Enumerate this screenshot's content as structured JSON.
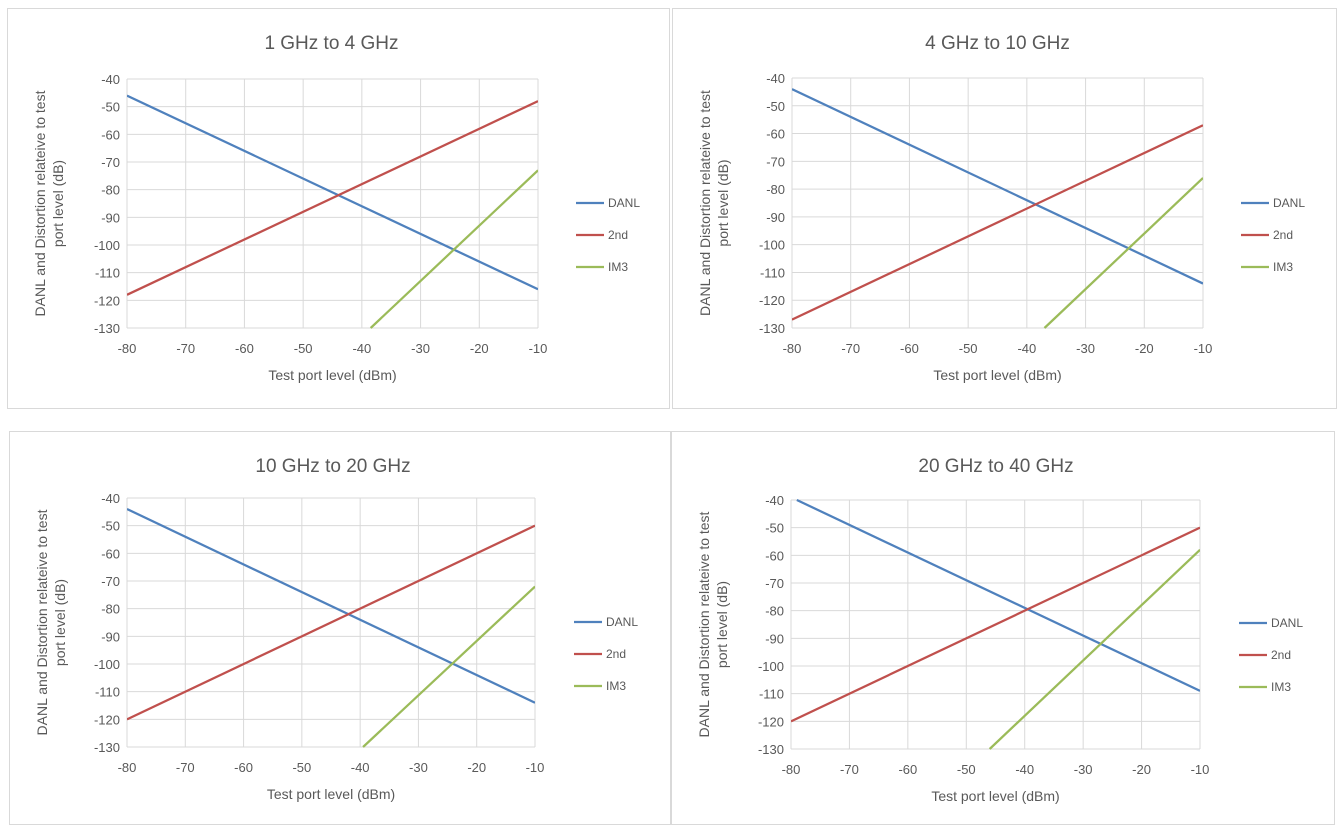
{
  "chart_data": [
    {
      "type": "line",
      "title": "1 GHz to 4 GHz",
      "xlabel": "Test port level (dBm)",
      "ylabel": "DANL and Distortion relateive to test port level (dB)",
      "ylabel_lines": [
        "DANL and Distortion relateive to test",
        "port level (dB)"
      ],
      "xlim": [
        -80,
        -10
      ],
      "ylim": [
        -130,
        -40
      ],
      "xticks": [
        "-80",
        "-70",
        "-60",
        "-50",
        "-40",
        "-30",
        "-20",
        "-10"
      ],
      "yticks": [
        "-40",
        "-50",
        "-60",
        "-70",
        "-80",
        "-90",
        "-100",
        "-110",
        "-120",
        "-130"
      ],
      "grid": true,
      "legend": "right",
      "series": [
        {
          "name": "DANL",
          "color": "#4f81bd",
          "x": [
            -80,
            -10
          ],
          "y": [
            -46,
            -116
          ]
        },
        {
          "name": "2nd",
          "color": "#c0504d",
          "x": [
            -80,
            -10
          ],
          "y": [
            -118,
            -48
          ]
        },
        {
          "name": "IM3",
          "color": "#9bbb59",
          "x": [
            -38.5,
            -10
          ],
          "y": [
            -130,
            -73
          ]
        }
      ]
    },
    {
      "type": "line",
      "title": "4 GHz to 10 GHz",
      "xlabel": "Test port level (dBm)",
      "ylabel": "DANL and Distortion relateive to test port level (dB)",
      "ylabel_lines": [
        "DANL and Distortion relateive to test",
        "port level (dB)"
      ],
      "xlim": [
        -80,
        -10
      ],
      "ylim": [
        -130,
        -40
      ],
      "xticks": [
        "-80",
        "-70",
        "-60",
        "-50",
        "-40",
        "-30",
        "-20",
        "-10"
      ],
      "yticks": [
        "-40",
        "-50",
        "-60",
        "-70",
        "-80",
        "-90",
        "-100",
        "-110",
        "-120",
        "-130"
      ],
      "grid": true,
      "legend": "right",
      "series": [
        {
          "name": "DANL",
          "color": "#4f81bd",
          "x": [
            -80,
            -10
          ],
          "y": [
            -44,
            -114
          ]
        },
        {
          "name": "2nd",
          "color": "#c0504d",
          "x": [
            -80,
            -10
          ],
          "y": [
            -127,
            -57
          ]
        },
        {
          "name": "IM3",
          "color": "#9bbb59",
          "x": [
            -37,
            -10
          ],
          "y": [
            -130,
            -76
          ]
        }
      ]
    },
    {
      "type": "line",
      "title": "10 GHz to 20 GHz",
      "xlabel": "Test port level (dBm)",
      "ylabel": "DANL and Distortion relateive to test port level (dB)",
      "ylabel_lines": [
        "DANL and Distortion relateive to test",
        "port level (dB)"
      ],
      "xlim": [
        -80,
        -10
      ],
      "ylim": [
        -130,
        -40
      ],
      "xticks": [
        "-80",
        "-70",
        "-60",
        "-50",
        "-40",
        "-30",
        "-20",
        "-10"
      ],
      "yticks": [
        "-40",
        "-50",
        "-60",
        "-70",
        "-80",
        "-90",
        "-100",
        "-110",
        "-120",
        "-130"
      ],
      "grid": true,
      "legend": "right",
      "series": [
        {
          "name": "DANL",
          "color": "#4f81bd",
          "x": [
            -80,
            -10
          ],
          "y": [
            -44,
            -114
          ]
        },
        {
          "name": "2nd",
          "color": "#c0504d",
          "x": [
            -80,
            -10
          ],
          "y": [
            -120,
            -50
          ]
        },
        {
          "name": "IM3",
          "color": "#9bbb59",
          "x": [
            -39.5,
            -10
          ],
          "y": [
            -130,
            -72
          ]
        }
      ]
    },
    {
      "type": "line",
      "title": "20 GHz to 40 GHz",
      "xlabel": "Test port level (dBm)",
      "ylabel": "DANL and Distortion relateive to test port level (dB)",
      "ylabel_lines": [
        "DANL and Distortion relateive to test",
        "port level (dB)"
      ],
      "xlim": [
        -80,
        -10
      ],
      "ylim": [
        -130,
        -40
      ],
      "xticks": [
        "-80",
        "-70",
        "-60",
        "-50",
        "-40",
        "-30",
        "-20",
        "-10"
      ],
      "yticks": [
        "-40",
        "-50",
        "-60",
        "-70",
        "-80",
        "-90",
        "-100",
        "-110",
        "-120",
        "-130"
      ],
      "grid": true,
      "legend": "right",
      "series": [
        {
          "name": "DANL",
          "color": "#4f81bd",
          "x": [
            -79,
            -10
          ],
          "y": [
            -40,
            -109
          ]
        },
        {
          "name": "2nd",
          "color": "#c0504d",
          "x": [
            -80,
            -10
          ],
          "y": [
            -120,
            -50
          ]
        },
        {
          "name": "IM3",
          "color": "#9bbb59",
          "x": [
            -46,
            -10
          ],
          "y": [
            -130,
            -58
          ]
        }
      ]
    }
  ]
}
